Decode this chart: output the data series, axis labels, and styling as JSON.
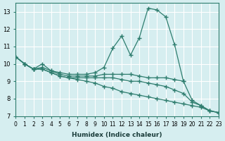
{
  "xlabel": "Humidex (Indice chaleur)",
  "ylabel": "",
  "background_color": "#d6eef0",
  "grid_color": "#ffffff",
  "line_color": "#2e7d6e",
  "xlim": [
    0,
    23
  ],
  "ylim": [
    7,
    13.5
  ],
  "yticks": [
    7,
    8,
    9,
    10,
    11,
    12,
    13
  ],
  "xticks": [
    0,
    1,
    2,
    3,
    4,
    5,
    6,
    7,
    8,
    9,
    10,
    11,
    12,
    13,
    14,
    15,
    16,
    17,
    18,
    19,
    20,
    21,
    22,
    23
  ],
  "series": [
    {
      "x": [
        0,
        1,
        2,
        3,
        4,
        5,
        6,
        7,
        8,
        9,
        10,
        11,
        12,
        13,
        14,
        15,
        16,
        17,
        18,
        19
      ],
      "y": [
        10.4,
        10.0,
        9.7,
        10.0,
        9.6,
        9.5,
        9.4,
        9.4,
        9.4,
        9.5,
        9.8,
        10.9,
        11.6,
        10.5,
        11.5,
        13.2,
        13.1,
        12.7,
        11.1,
        9.0
      ]
    },
    {
      "x": [
        0,
        1,
        2,
        3,
        4,
        5,
        6,
        7,
        8,
        9,
        10,
        11,
        12,
        13,
        14,
        15,
        16,
        17,
        18,
        19,
        20,
        21,
        22,
        23
      ],
      "y": [
        10.4,
        10.0,
        9.7,
        9.8,
        9.6,
        9.4,
        9.3,
        9.3,
        9.3,
        9.3,
        9.4,
        9.4,
        9.4,
        9.4,
        9.3,
        9.2,
        9.2,
        9.2,
        9.1,
        9.0,
        7.9,
        7.6,
        7.3,
        7.2
      ]
    },
    {
      "x": [
        0,
        1,
        2,
        3,
        4,
        5,
        6,
        7,
        8,
        9,
        10,
        11,
        12,
        13,
        14,
        15,
        16,
        17,
        18,
        19,
        20,
        21,
        22,
        23
      ],
      "y": [
        10.4,
        10.0,
        9.7,
        9.7,
        9.5,
        9.3,
        9.2,
        9.2,
        9.2,
        9.2,
        9.2,
        9.2,
        9.1,
        9.0,
        9.0,
        8.9,
        8.8,
        8.7,
        8.5,
        8.3,
        7.8,
        7.6,
        7.3,
        7.2
      ]
    },
    {
      "x": [
        0,
        1,
        2,
        3,
        4,
        5,
        6,
        7,
        8,
        9,
        10,
        11,
        12,
        13,
        14,
        15,
        16,
        17,
        18,
        19,
        20,
        21,
        22,
        23
      ],
      "y": [
        10.4,
        10.0,
        9.7,
        9.7,
        9.5,
        9.3,
        9.2,
        9.1,
        9.0,
        8.9,
        8.7,
        8.6,
        8.4,
        8.3,
        8.2,
        8.1,
        8.0,
        7.9,
        7.8,
        7.7,
        7.6,
        7.5,
        7.3,
        7.2
      ]
    }
  ]
}
